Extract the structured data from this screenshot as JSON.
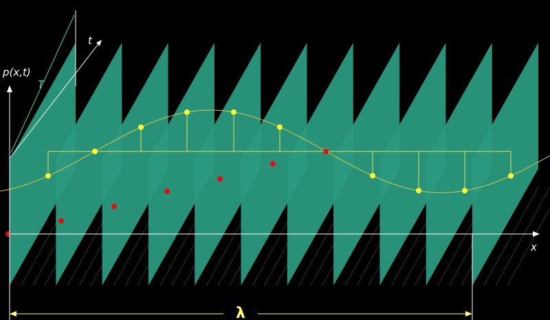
{
  "labels": {
    "pressure": "p(x,t)",
    "period": "T",
    "time_axis": "t",
    "x_axis": "x",
    "wavelength": "λ"
  }
}
